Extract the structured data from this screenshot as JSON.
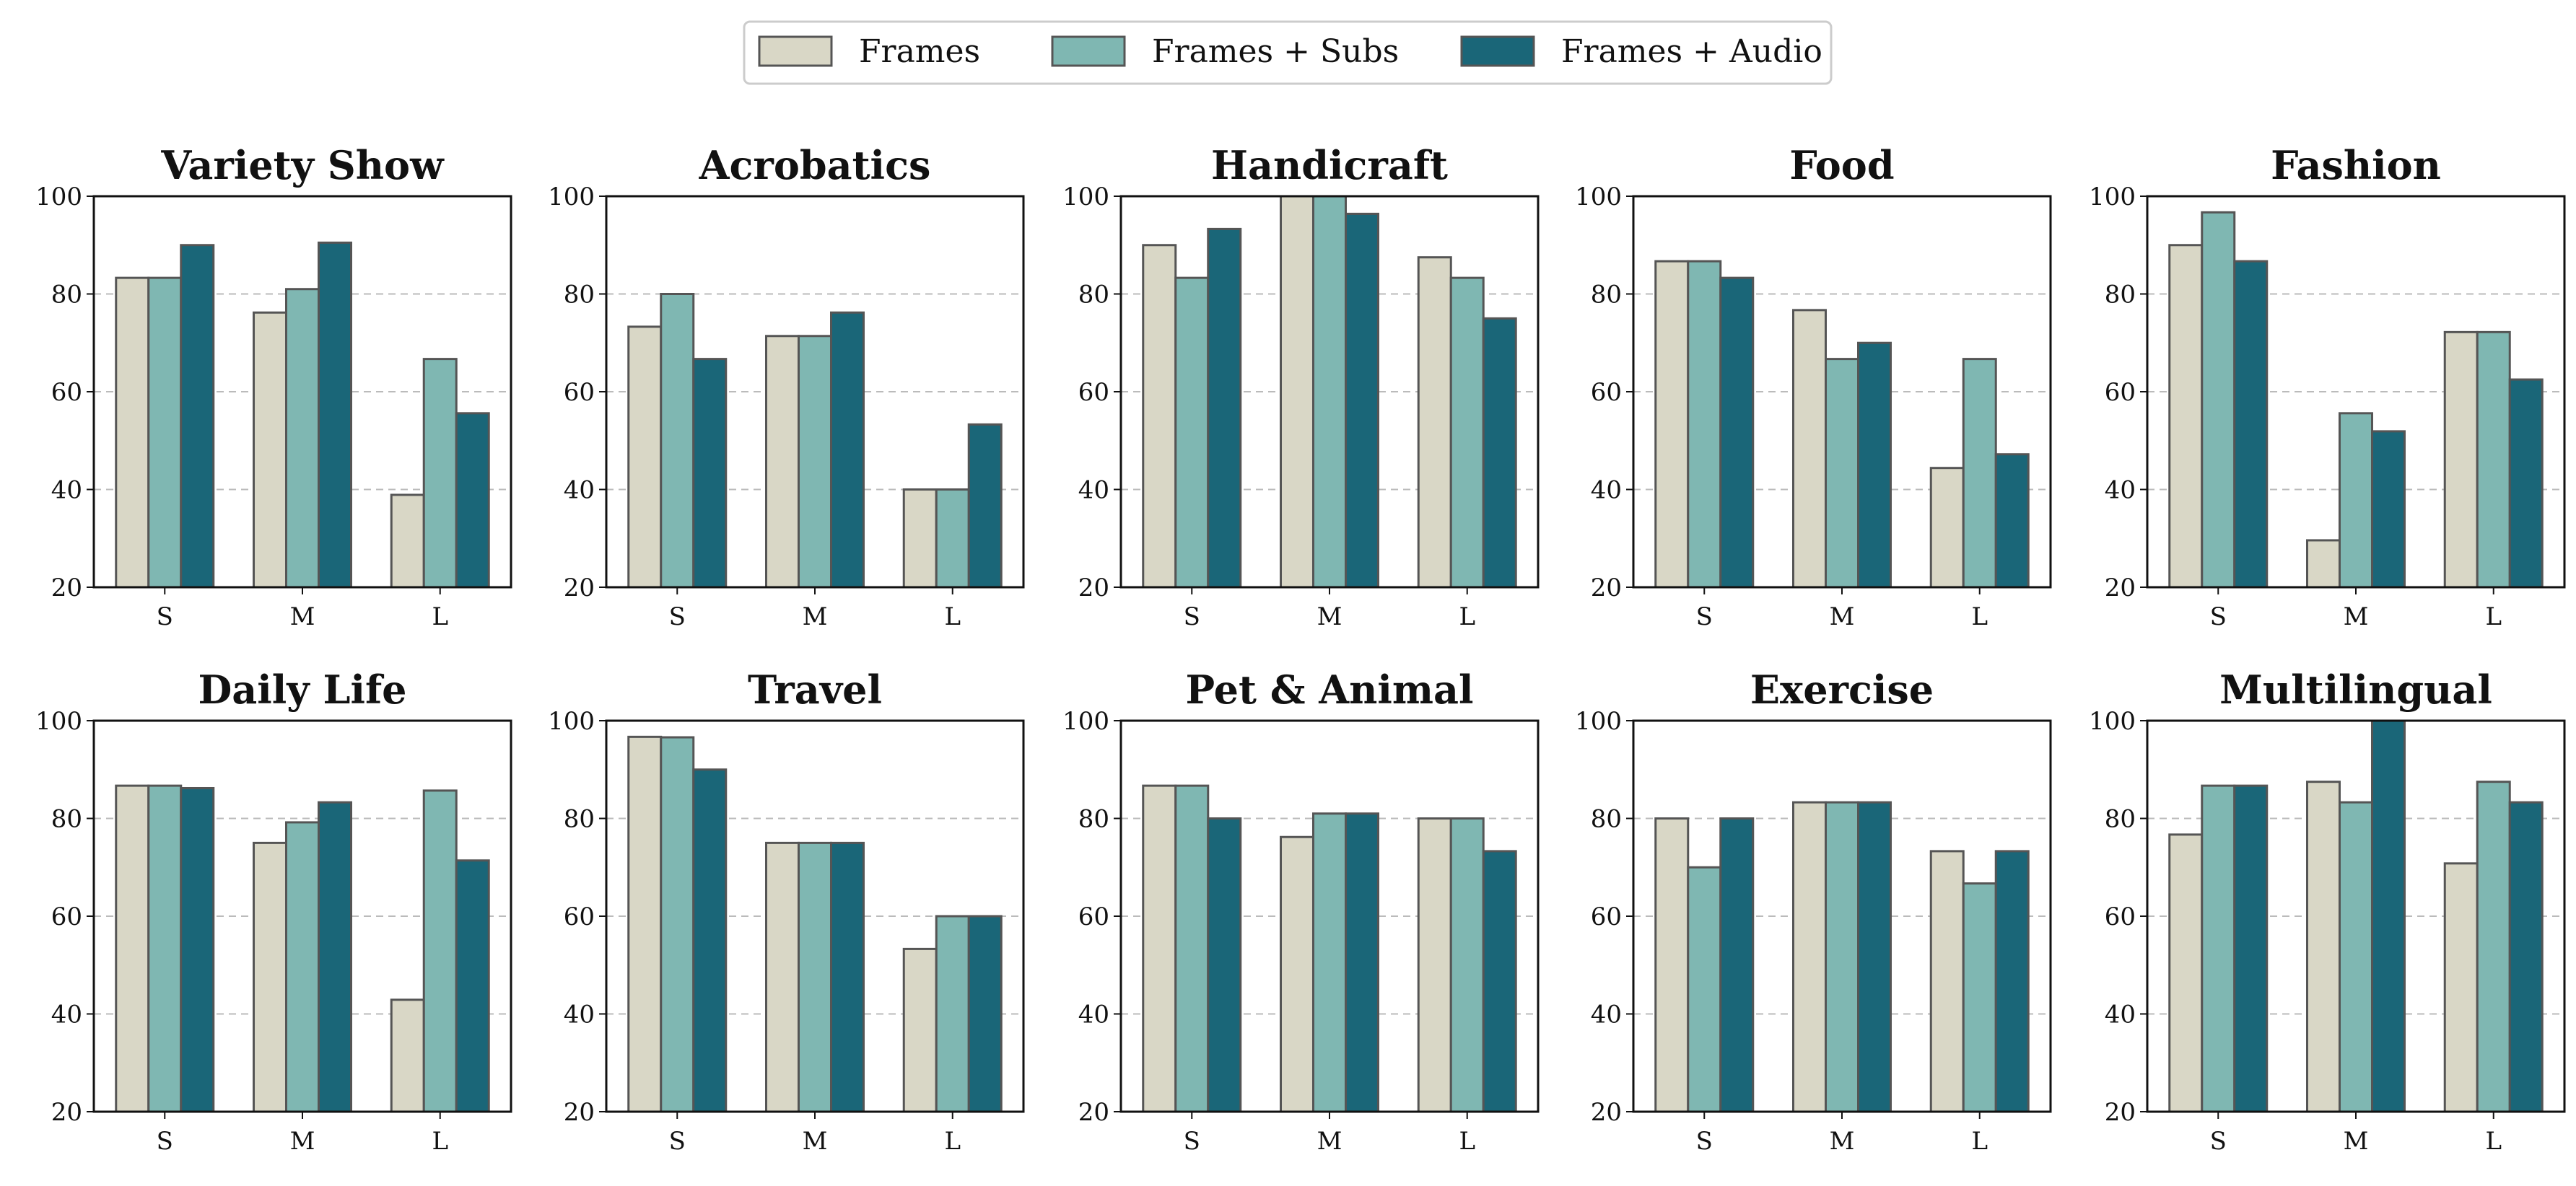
{
  "chart_data": {
    "type": "bar",
    "legend": {
      "placement": "top-center",
      "entries": [
        "Frames",
        "Frames + Subs",
        "Frames + Audio"
      ]
    },
    "series_colors": [
      "#d9d7c6",
      "#7fb7b2",
      "#1a6678"
    ],
    "bar_edge_color": "#555555",
    "grid": "y-dashed",
    "categories": [
      "S",
      "M",
      "L"
    ],
    "ylim": [
      20,
      100
    ],
    "yticks": [
      20,
      40,
      60,
      80,
      100
    ],
    "panels": [
      {
        "title": "Variety Show",
        "series": [
          {
            "name": "Frames",
            "values": [
              83.3,
              76.2,
              38.9
            ]
          },
          {
            "name": "Frames + Subs",
            "values": [
              83.3,
              81.0,
              66.7
            ]
          },
          {
            "name": "Frames + Audio",
            "values": [
              90.0,
              90.5,
              55.6
            ]
          }
        ]
      },
      {
        "title": "Acrobatics",
        "series": [
          {
            "name": "Frames",
            "values": [
              73.3,
              71.4,
              40.0
            ]
          },
          {
            "name": "Frames + Subs",
            "values": [
              80.0,
              71.4,
              40.0
            ]
          },
          {
            "name": "Frames + Audio",
            "values": [
              66.7,
              76.2,
              53.3
            ]
          }
        ]
      },
      {
        "title": "Handicraft",
        "series": [
          {
            "name": "Frames",
            "values": [
              90.0,
              100.0,
              87.5
            ]
          },
          {
            "name": "Frames + Subs",
            "values": [
              83.3,
              100.0,
              83.3
            ]
          },
          {
            "name": "Frames + Audio",
            "values": [
              93.3,
              96.4,
              75.0
            ]
          }
        ]
      },
      {
        "title": "Food",
        "series": [
          {
            "name": "Frames",
            "values": [
              86.7,
              76.7,
              44.4
            ]
          },
          {
            "name": "Frames + Subs",
            "values": [
              86.7,
              66.7,
              66.7
            ]
          },
          {
            "name": "Frames + Audio",
            "values": [
              83.3,
              70.0,
              47.2
            ]
          }
        ]
      },
      {
        "title": "Fashion",
        "series": [
          {
            "name": "Frames",
            "values": [
              90.0,
              29.6,
              72.2
            ]
          },
          {
            "name": "Frames + Subs",
            "values": [
              96.7,
              55.6,
              72.2
            ]
          },
          {
            "name": "Frames + Audio",
            "values": [
              86.7,
              51.9,
              62.5
            ]
          }
        ]
      },
      {
        "title": "Daily Life",
        "series": [
          {
            "name": "Frames",
            "values": [
              86.7,
              75.0,
              42.9
            ]
          },
          {
            "name": "Frames + Subs",
            "values": [
              86.7,
              79.2,
              85.7
            ]
          },
          {
            "name": "Frames + Audio",
            "values": [
              86.2,
              83.3,
              71.4
            ]
          }
        ]
      },
      {
        "title": "Travel",
        "series": [
          {
            "name": "Frames",
            "values": [
              96.7,
              75.0,
              53.3
            ]
          },
          {
            "name": "Frames + Subs",
            "values": [
              96.6,
              75.0,
              60.0
            ]
          },
          {
            "name": "Frames + Audio",
            "values": [
              90.0,
              75.0,
              60.0
            ]
          }
        ]
      },
      {
        "title": "Pet & Animal",
        "series": [
          {
            "name": "Frames",
            "values": [
              86.7,
              76.2,
              80.0
            ]
          },
          {
            "name": "Frames + Subs",
            "values": [
              86.7,
              81.0,
              80.0
            ]
          },
          {
            "name": "Frames + Audio",
            "values": [
              80.0,
              81.0,
              73.3
            ]
          }
        ]
      },
      {
        "title": "Exercise",
        "series": [
          {
            "name": "Frames",
            "values": [
              80.0,
              83.3,
              73.3
            ]
          },
          {
            "name": "Frames + Subs",
            "values": [
              70.0,
              83.3,
              66.7
            ]
          },
          {
            "name": "Frames + Audio",
            "values": [
              80.0,
              83.3,
              73.3
            ]
          }
        ]
      },
      {
        "title": "Multilingual",
        "series": [
          {
            "name": "Frames",
            "values": [
              76.7,
              87.5,
              70.8
            ]
          },
          {
            "name": "Frames + Subs",
            "values": [
              86.7,
              83.3,
              87.5
            ]
          },
          {
            "name": "Frames + Audio",
            "values": [
              86.7,
              100.0,
              83.3
            ]
          }
        ]
      }
    ]
  }
}
